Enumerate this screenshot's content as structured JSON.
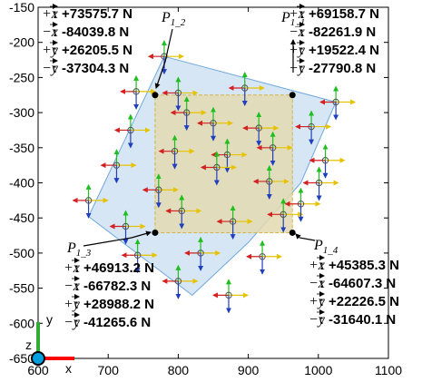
{
  "chart_data": {
    "type": "scatter",
    "title": "",
    "xlim": [
      600,
      1100
    ],
    "ylim": [
      -650,
      -150
    ],
    "x_ticks": [
      "600",
      "700",
      "800",
      "900",
      "1000",
      "1100"
    ],
    "y_ticks": [
      "-150",
      "-200",
      "-250",
      "-300",
      "-350",
      "-400",
      "-450",
      "-500",
      "-550",
      "-600",
      "-650"
    ],
    "grid": false,
    "colors": {
      "plate_fill": "#cfe2f3",
      "plate_edge": "#6fa8dc",
      "rect_fill": "#e3d9b0",
      "rect_edge": "#d4b44a",
      "arrow_up": "#1fbf1f",
      "arrow_down": "#1f3fbf",
      "arrow_right": "#e6c200",
      "arrow_left": "#d42020",
      "frame_x": "#ff0000",
      "frame_y": "#33aa33",
      "frame_z": "#00a0e0"
    },
    "plate_polygon": [
      [
        780,
        -220
      ],
      [
        1025,
        -285
      ],
      [
        975,
        -400
      ],
      [
        900,
        -485
      ],
      [
        820,
        -560
      ],
      [
        672,
        -448
      ]
    ],
    "inner_rectangle": {
      "x": [
        767,
        963
      ],
      "y": [
        -275,
        -471
      ]
    },
    "probe_points": [
      [
        780,
        -220
      ],
      [
        740,
        -270
      ],
      [
        800,
        -272
      ],
      [
        895,
        -265
      ],
      [
        1025,
        -285
      ],
      [
        732,
        -325
      ],
      [
        812,
        -300
      ],
      [
        850,
        -315
      ],
      [
        915,
        -322
      ],
      [
        990,
        -320
      ],
      [
        712,
        -375
      ],
      [
        795,
        -355
      ],
      [
        870,
        -360
      ],
      [
        935,
        -350
      ],
      [
        1010,
        -368
      ],
      [
        672,
        -425
      ],
      [
        772,
        -410
      ],
      [
        855,
        -378
      ],
      [
        930,
        -398
      ],
      [
        1001,
        -400
      ],
      [
        725,
        -462
      ],
      [
        805,
        -440
      ],
      [
        878,
        -455
      ],
      [
        950,
        -445
      ],
      [
        975,
        -430
      ],
      [
        742,
        -503
      ],
      [
        832,
        -500
      ],
      [
        920,
        -505
      ],
      [
        800,
        -540
      ],
      [
        872,
        -560
      ]
    ],
    "corners": [
      {
        "id": "P1_1",
        "name": "P",
        "sub": "1_1",
        "x": 963,
        "y": -275,
        "forces": [
          {
            "sign": "+",
            "axis": "x",
            "value": "+69158.7",
            "unit": "N"
          },
          {
            "sign": "−",
            "axis": "x",
            "value": "-82261.9",
            "unit": "N"
          },
          {
            "sign": "+",
            "axis": "y",
            "value": "+19522.4",
            "unit": "N"
          },
          {
            "sign": "−",
            "axis": "y",
            "value": "-27790.8",
            "unit": "N"
          }
        ]
      },
      {
        "id": "P1_2",
        "name": "P",
        "sub": "1_2",
        "x": 767,
        "y": -275,
        "forces": [
          {
            "sign": "+",
            "axis": "x",
            "value": "+73575.7",
            "unit": "N"
          },
          {
            "sign": "−",
            "axis": "x",
            "value": "-84039.8",
            "unit": "N"
          },
          {
            "sign": "+",
            "axis": "y",
            "value": "+26205.5",
            "unit": "N"
          },
          {
            "sign": "−",
            "axis": "y",
            "value": "-37304.3",
            "unit": "N"
          }
        ]
      },
      {
        "id": "P1_3",
        "name": "P",
        "sub": "1_3",
        "x": 767,
        "y": -471,
        "forces": [
          {
            "sign": "+",
            "axis": "x",
            "value": "+46913.2",
            "unit": "N"
          },
          {
            "sign": "−",
            "axis": "x",
            "value": "-66782.3",
            "unit": "N"
          },
          {
            "sign": "+",
            "axis": "y",
            "value": "+28988.2",
            "unit": "N"
          },
          {
            "sign": "−",
            "axis": "y",
            "value": "-41265.6",
            "unit": "N"
          }
        ]
      },
      {
        "id": "P1_4",
        "name": "P",
        "sub": "1_4",
        "x": 963,
        "y": -471,
        "forces": [
          {
            "sign": "+",
            "axis": "x",
            "value": "+45385.3",
            "unit": "N"
          },
          {
            "sign": "−",
            "axis": "x",
            "value": "-64607.3",
            "unit": "N"
          },
          {
            "sign": "+",
            "axis": "y",
            "value": "+22226.5",
            "unit": "N"
          },
          {
            "sign": "−",
            "axis": "y",
            "value": "-31640.1",
            "unit": "N"
          }
        ]
      }
    ],
    "frame_labels": {
      "x": "x",
      "y": "y",
      "z": "z"
    }
  }
}
